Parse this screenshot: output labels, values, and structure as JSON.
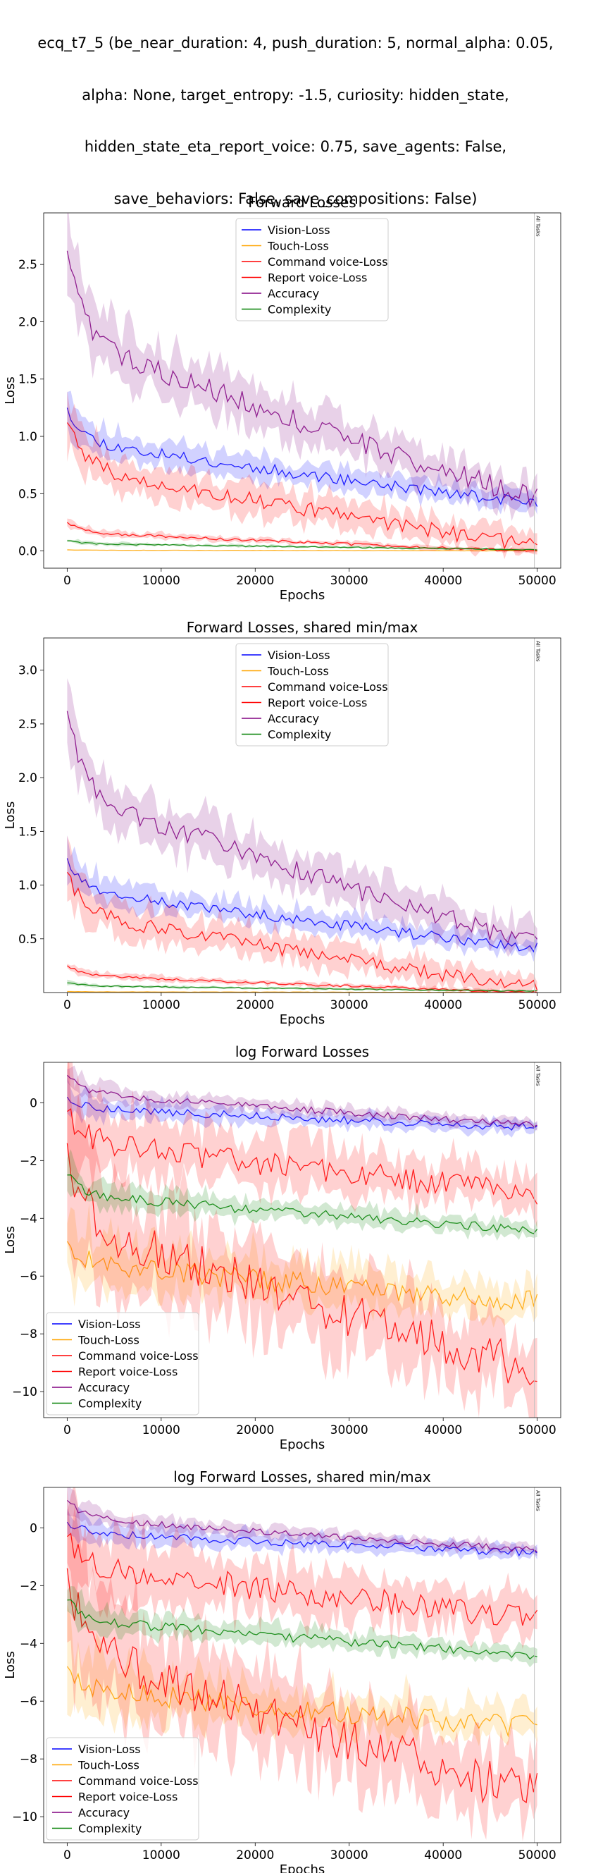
{
  "figure": {
    "suptitle_lines": [
      "ecq_t7_5 (be_near_duration: 4, push_duration: 5, normal_alpha: 0.05,",
      "alpha: None, target_entropy: -1.5, curiosity: hidden_state,",
      "hidden_state_eta_report_voice: 0.75, save_agents: False,",
      "save_behaviors: False, save_compositions: False)"
    ]
  },
  "colors": {
    "Vision-Loss": "#0000ff",
    "Touch-Loss": "#ffa500",
    "Command voice-Loss": "#ff0000",
    "Report voice-Loss": "#ff0000",
    "Accuracy": "#800080",
    "Complexity": "#008000",
    "marker_line": "#c0c0c0"
  },
  "chart_data": [
    {
      "type": "line",
      "title": "Forward Losses",
      "xlabel": "Epochs",
      "ylabel": "Loss",
      "xlim": [
        -2500,
        52500
      ],
      "ylim": [
        -0.15,
        2.95
      ],
      "xticks": [
        0,
        10000,
        20000,
        30000,
        40000,
        50000
      ],
      "yticks": [
        0.0,
        0.5,
        1.0,
        1.5,
        2.0,
        2.5
      ],
      "ytick_labels": [
        "0.0",
        "0.5",
        "1.0",
        "1.5",
        "2.0",
        "2.5"
      ],
      "vline": {
        "x": 49700,
        "label": "All Tasks"
      },
      "legend": "upper center",
      "grid": false,
      "series": [
        {
          "name": "Vision-Loss",
          "start": 1.25,
          "end": 0.42,
          "band": 0.09
        },
        {
          "name": "Touch-Loss",
          "start": 0.01,
          "end": 0.001,
          "band": 0.003
        },
        {
          "name": "Command voice-Loss",
          "start": 1.12,
          "end": 0.05,
          "band": 0.12
        },
        {
          "name": "Report voice-Loss",
          "start": 0.25,
          "end": 0.0005,
          "band": 0.02
        },
        {
          "name": "Accuracy",
          "start": 2.62,
          "end": 0.47,
          "band": 0.17
        },
        {
          "name": "Complexity",
          "start": 0.09,
          "end": 0.013,
          "band": 0.01
        }
      ]
    },
    {
      "type": "line",
      "title": "Forward Losses, shared min/max",
      "xlabel": "Epochs",
      "ylabel": "Loss",
      "xlim": [
        -2500,
        52500
      ],
      "ylim": [
        0.0,
        3.3
      ],
      "xticks": [
        0,
        10000,
        20000,
        30000,
        40000,
        50000
      ],
      "yticks": [
        0.5,
        1.0,
        1.5,
        2.0,
        2.5,
        3.0
      ],
      "ytick_labels": [
        "0.5",
        "1.0",
        "1.5",
        "2.0",
        "2.5",
        "3.0"
      ],
      "vline": {
        "x": 49700,
        "label": "All Tasks"
      },
      "legend": "upper center",
      "grid": false,
      "series": [
        {
          "name": "Vision-Loss",
          "start": 1.25,
          "end": 0.42,
          "band": 0.09
        },
        {
          "name": "Touch-Loss",
          "start": 0.01,
          "end": 0.001,
          "band": 0.003
        },
        {
          "name": "Command voice-Loss",
          "start": 1.12,
          "end": 0.05,
          "band": 0.12
        },
        {
          "name": "Report voice-Loss",
          "start": 0.25,
          "end": 0.0005,
          "band": 0.02
        },
        {
          "name": "Accuracy",
          "start": 2.62,
          "end": 0.47,
          "band": 0.17
        },
        {
          "name": "Complexity",
          "start": 0.09,
          "end": 0.013,
          "band": 0.01
        }
      ]
    },
    {
      "type": "line",
      "title": "log Forward Losses",
      "xlabel": "Epochs",
      "ylabel": "Loss",
      "xlim": [
        -2500,
        52500
      ],
      "ylim": [
        -10.9,
        1.4
      ],
      "xticks": [
        0,
        10000,
        20000,
        30000,
        40000,
        50000
      ],
      "yticks": [
        0,
        -2,
        -4,
        -6,
        -8,
        -10
      ],
      "ytick_labels": [
        "0",
        "−2",
        "−4",
        "−6",
        "−8",
        "−10"
      ],
      "vline": {
        "x": 49700,
        "label": "All Tasks"
      },
      "legend": "lower left",
      "grid": false,
      "series": [
        {
          "name": "Vision-Loss",
          "start": 0.2,
          "end": -0.85,
          "band": 0.25
        },
        {
          "name": "Touch-Loss",
          "start": -4.8,
          "end": -6.9,
          "band": 0.7
        },
        {
          "name": "Command voice-Loss",
          "start": -0.3,
          "end": -3.1,
          "band": 0.8
        },
        {
          "name": "Report voice-Loss",
          "start": -1.4,
          "end": -9.2,
          "band": 1.4
        },
        {
          "name": "Accuracy",
          "start": 0.95,
          "end": -0.75,
          "band": 0.2
        },
        {
          "name": "Complexity",
          "start": -2.5,
          "end": -4.4,
          "band": 0.3
        }
      ]
    },
    {
      "type": "line",
      "title": "log Forward Losses, shared min/max",
      "xlabel": "Epochs",
      "ylabel": "Loss",
      "xlim": [
        -2500,
        52500
      ],
      "ylim": [
        -10.9,
        1.4
      ],
      "xticks": [
        0,
        10000,
        20000,
        30000,
        40000,
        50000
      ],
      "yticks": [
        0,
        -2,
        -4,
        -6,
        -8,
        -10
      ],
      "ytick_labels": [
        "0",
        "−2",
        "−4",
        "−6",
        "−8",
        "−10"
      ],
      "vline": {
        "x": 49700,
        "label": "All Tasks"
      },
      "legend": "lower left",
      "grid": false,
      "series": [
        {
          "name": "Vision-Loss",
          "start": 0.2,
          "end": -0.85,
          "band": 0.25
        },
        {
          "name": "Touch-Loss",
          "start": -4.8,
          "end": -6.9,
          "band": 0.7
        },
        {
          "name": "Command voice-Loss",
          "start": -0.3,
          "end": -3.1,
          "band": 0.8
        },
        {
          "name": "Report voice-Loss",
          "start": -1.4,
          "end": -9.2,
          "band": 1.4
        },
        {
          "name": "Accuracy",
          "start": 0.95,
          "end": -0.75,
          "band": 0.2
        },
        {
          "name": "Complexity",
          "start": -2.5,
          "end": -4.4,
          "band": 0.3
        }
      ]
    }
  ]
}
